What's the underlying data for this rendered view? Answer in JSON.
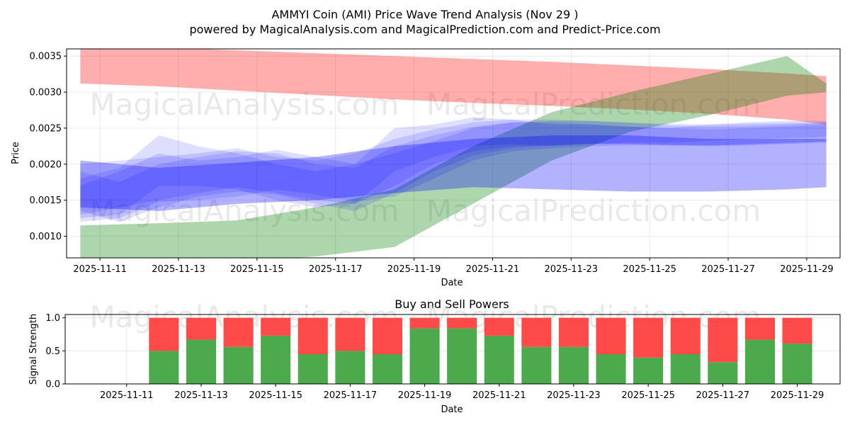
{
  "chart_data": [
    {
      "type": "area",
      "title": "AMMYI Coin (AMI) Price Wave Trend Analysis (Nov 29 )",
      "subtitle": "powered by MagicalAnalysis.com and MagicalPrediction.com and Predict-Price.com",
      "xlabel": "Date",
      "ylabel": "Price",
      "xlim": [
        "2025-11-10.15",
        "2025-11-29.85"
      ],
      "ylim": [
        0.0007,
        0.0036
      ],
      "x_ticks": [
        "2025-11-11",
        "2025-11-13",
        "2025-11-15",
        "2025-11-17",
        "2025-11-19",
        "2025-11-21",
        "2025-11-23",
        "2025-11-25",
        "2025-11-27",
        "2025-11-29"
      ],
      "y_ticks": [
        "0.0010",
        "0.0015",
        "0.0020",
        "0.0025",
        "0.0030",
        "0.0035"
      ],
      "watermarks": [
        "MagicalAnalysis.com",
        "MagicalPrediction.com",
        "MagicalAnalysis.com",
        "MagicalPrediction.com"
      ],
      "series": [
        {
          "name": "red-band",
          "color": "#ff0000",
          "opacity": 0.32,
          "x": [
            0,
            2,
            4,
            6,
            8,
            10,
            12,
            14,
            16,
            18,
            19
          ],
          "upper": [
            0.00365,
            0.00362,
            0.00358,
            0.00354,
            0.0035,
            0.00346,
            0.00342,
            0.00337,
            0.00332,
            0.00326,
            0.00322
          ],
          "lower": [
            0.00312,
            0.00308,
            0.00302,
            0.00296,
            0.0029,
            0.00285,
            0.00281,
            0.00276,
            0.0027,
            0.00262,
            0.00255
          ]
        },
        {
          "name": "green-band",
          "color": "#008000",
          "opacity": 0.32,
          "x": [
            0,
            2,
            4,
            6,
            8,
            10,
            12,
            14,
            16,
            18,
            19
          ],
          "upper": [
            0.00115,
            0.00118,
            0.00122,
            0.0014,
            0.00165,
            0.00225,
            0.00272,
            0.003,
            0.00325,
            0.0035,
            0.00312
          ],
          "lower": [
            0.00065,
            0.00065,
            0.00065,
            0.00072,
            0.00085,
            0.00145,
            0.00205,
            0.00245,
            0.00268,
            0.00295,
            0.003
          ]
        },
        {
          "name": "blue-band-main",
          "color": "#0000ff",
          "opacity": 0.3,
          "x": [
            0,
            2,
            4,
            6,
            8,
            10,
            12,
            14,
            16,
            18,
            19
          ],
          "upper": [
            0.00205,
            0.00195,
            0.00202,
            0.0021,
            0.00225,
            0.00235,
            0.0024,
            0.0024,
            0.00235,
            0.00235,
            0.00235
          ],
          "lower": [
            0.0014,
            0.00135,
            0.00145,
            0.0015,
            0.0016,
            0.00168,
            0.00165,
            0.00162,
            0.00162,
            0.00165,
            0.00168
          ]
        },
        {
          "name": "blue-wave-1",
          "color": "#0000ff",
          "opacity": 0.13,
          "x": [
            0,
            1,
            2,
            3,
            4,
            5,
            6,
            7,
            8,
            9,
            10,
            11,
            12,
            13,
            14,
            15,
            16,
            17,
            18,
            19
          ],
          "upper": [
            0.0018,
            0.00195,
            0.0024,
            0.00225,
            0.00215,
            0.002,
            0.0019,
            0.002,
            0.0025,
            0.00255,
            0.00265,
            0.00262,
            0.00255,
            0.00255,
            0.00252,
            0.0025,
            0.00255,
            0.00258,
            0.0026,
            0.0026
          ],
          "lower": [
            0.00125,
            0.0013,
            0.0017,
            0.0017,
            0.00165,
            0.0015,
            0.0014,
            0.00145,
            0.0019,
            0.0021,
            0.00225,
            0.00228,
            0.00225,
            0.00228,
            0.0023,
            0.0023,
            0.00232,
            0.00235,
            0.00236,
            0.00238
          ]
        },
        {
          "name": "blue-wave-2",
          "color": "#0000ff",
          "opacity": 0.13,
          "x": [
            0,
            1,
            2,
            3,
            4,
            5,
            6,
            7,
            8,
            9,
            10,
            11,
            12,
            13,
            14,
            15,
            16,
            17,
            18,
            19
          ],
          "upper": [
            0.002,
            0.00205,
            0.0021,
            0.00215,
            0.00222,
            0.0021,
            0.00205,
            0.00215,
            0.00235,
            0.00248,
            0.00258,
            0.00262,
            0.00262,
            0.0026,
            0.00258,
            0.00256,
            0.00255,
            0.00256,
            0.00257,
            0.00258
          ],
          "lower": [
            0.0013,
            0.0014,
            0.0015,
            0.0016,
            0.00168,
            0.0016,
            0.0015,
            0.00145,
            0.0017,
            0.002,
            0.00218,
            0.00225,
            0.00226,
            0.00228,
            0.00228,
            0.00226,
            0.00225,
            0.00226,
            0.00228,
            0.0023
          ]
        },
        {
          "name": "blue-wave-3",
          "color": "#0000ff",
          "opacity": 0.13,
          "x": [
            0,
            1,
            2,
            3,
            4,
            5,
            6,
            7,
            8,
            9,
            10,
            11,
            12,
            13,
            14,
            15,
            16,
            17,
            18,
            19
          ],
          "upper": [
            0.0017,
            0.0019,
            0.00215,
            0.00205,
            0.0021,
            0.0022,
            0.0021,
            0.002,
            0.00215,
            0.00232,
            0.0025,
            0.00258,
            0.00258,
            0.00255,
            0.00252,
            0.0025,
            0.00248,
            0.0025,
            0.00252,
            0.00255
          ],
          "lower": [
            0.0012,
            0.00125,
            0.00148,
            0.0015,
            0.00155,
            0.00165,
            0.00158,
            0.00148,
            0.00155,
            0.0018,
            0.00205,
            0.00218,
            0.00222,
            0.00225,
            0.00226,
            0.00226,
            0.00226,
            0.00228,
            0.0023,
            0.00232
          ]
        },
        {
          "name": "blue-wave-4",
          "color": "#0000ff",
          "opacity": 0.13,
          "x": [
            0,
            1,
            2,
            3,
            4,
            5,
            6,
            7,
            8,
            9,
            10,
            11,
            12,
            13,
            14,
            15,
            16,
            17,
            18,
            19
          ],
          "upper": [
            0.0019,
            0.00175,
            0.002,
            0.0021,
            0.00218,
            0.00215,
            0.002,
            0.00195,
            0.00225,
            0.0024,
            0.00252,
            0.00258,
            0.0026,
            0.0026,
            0.00257,
            0.00254,
            0.00252,
            0.00253,
            0.00255,
            0.00257
          ],
          "lower": [
            0.00135,
            0.0012,
            0.0014,
            0.00155,
            0.00162,
            0.00158,
            0.00145,
            0.00135,
            0.0016,
            0.0019,
            0.00212,
            0.00222,
            0.00226,
            0.00228,
            0.00228,
            0.00227,
            0.00226,
            0.00227,
            0.00229,
            0.00231
          ]
        }
      ]
    },
    {
      "type": "bar",
      "title": "Buy and Sell Powers",
      "xlabel": "Date",
      "ylabel": "Signal Strength",
      "ylim": [
        0,
        1.05
      ],
      "y_ticks": [
        "0.0",
        "0.5",
        "1.0"
      ],
      "x_ticks": [
        "2025-11-11",
        "2025-11-13",
        "2025-11-15",
        "2025-11-17",
        "2025-11-19",
        "2025-11-21",
        "2025-11-23",
        "2025-11-25",
        "2025-11-27",
        "2025-11-29"
      ],
      "categories": [
        "2025-11-12",
        "2025-11-13",
        "2025-11-14",
        "2025-11-15",
        "2025-11-16",
        "2025-11-17",
        "2025-11-18",
        "2025-11-19",
        "2025-11-20",
        "2025-11-21",
        "2025-11-22",
        "2025-11-23",
        "2025-11-24",
        "2025-11-25",
        "2025-11-26",
        "2025-11-27",
        "2025-11-28",
        "2025-11-29"
      ],
      "series": [
        {
          "name": "Buy",
          "color": "#4caa4c",
          "values": [
            0.5,
            0.67,
            0.56,
            0.73,
            0.45,
            0.5,
            0.45,
            0.84,
            0.84,
            0.73,
            0.56,
            0.56,
            0.45,
            0.4,
            0.45,
            0.33,
            0.67,
            0.61
          ]
        },
        {
          "name": "Sell",
          "color": "#ff4a4a",
          "values": [
            0.5,
            0.33,
            0.44,
            0.27,
            0.55,
            0.5,
            0.55,
            0.16,
            0.16,
            0.27,
            0.44,
            0.44,
            0.55,
            0.6,
            0.55,
            0.67,
            0.33,
            0.39
          ]
        }
      ],
      "watermarks": [
        "MagicalAnalysis.com",
        "MagicalPrediction.com"
      ]
    }
  ]
}
